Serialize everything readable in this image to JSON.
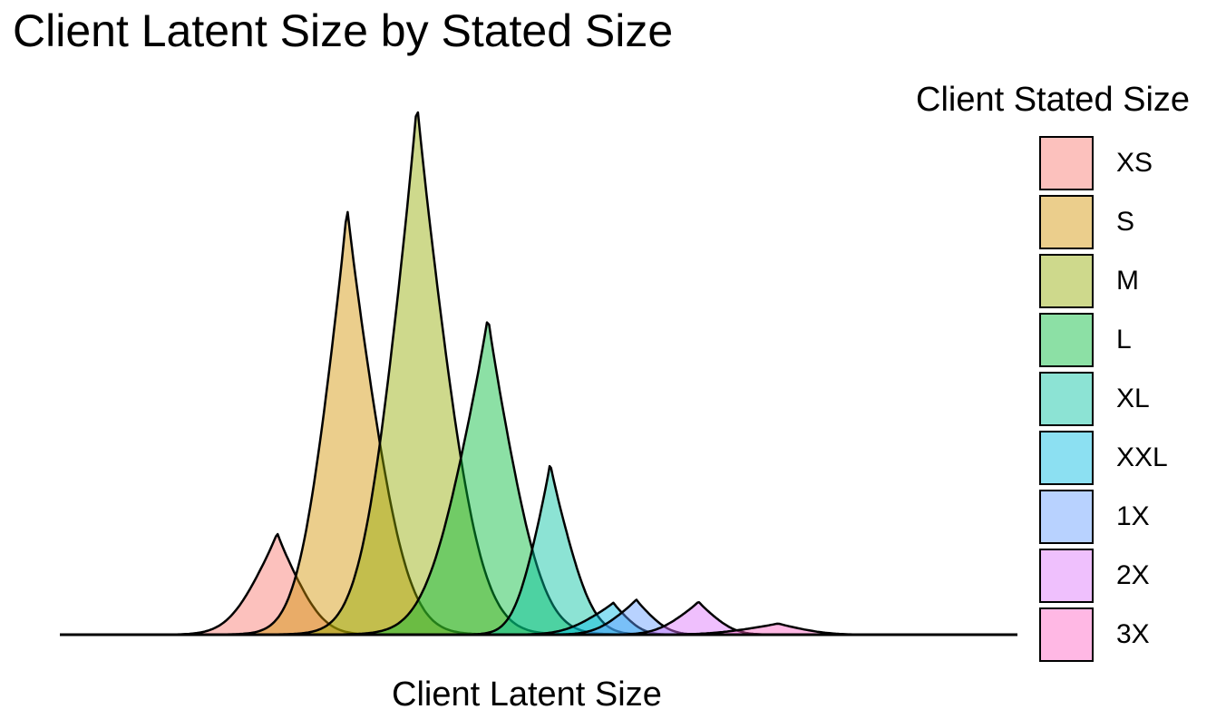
{
  "title": "Client Latent Size by Stated Size",
  "chart_data": {
    "type": "area",
    "title": "Client Latent Size by Stated Size",
    "xlabel": "Client Latent Size",
    "ylabel": "",
    "x_tick_labels": false,
    "y_tick_labels": false,
    "grid": false,
    "legend": {
      "title": "Client Stated Size",
      "position": "right"
    },
    "series": [
      {
        "name": "XS",
        "color": "#F8766D",
        "peak_x": 0.227,
        "peak_height": 0.191,
        "spread": 0.03,
        "right_spread": 0.028
      },
      {
        "name": "S",
        "color": "#D39200",
        "peak_x": 0.3,
        "peak_height": 0.803,
        "spread": 0.03,
        "right_spread": 0.036
      },
      {
        "name": "M",
        "color": "#93AA00",
        "peak_x": 0.373,
        "peak_height": 1.0,
        "spread": 0.034,
        "right_spread": 0.038
      },
      {
        "name": "L",
        "color": "#00BA38",
        "peak_x": 0.447,
        "peak_height": 0.598,
        "spread": 0.038,
        "right_spread": 0.034
      },
      {
        "name": "XL",
        "color": "#00C19F",
        "peak_x": 0.512,
        "peak_height": 0.322,
        "spread": 0.022,
        "right_spread": 0.026
      },
      {
        "name": "XXL",
        "color": "#00B9E3",
        "peak_x": 0.578,
        "peak_height": 0.06,
        "spread": 0.03,
        "right_spread": 0.018
      },
      {
        "name": "1X",
        "color": "#619CFF",
        "peak_x": 0.602,
        "peak_height": 0.066,
        "spread": 0.025,
        "right_spread": 0.02
      },
      {
        "name": "2X",
        "color": "#DB72FB",
        "peak_x": 0.667,
        "peak_height": 0.062,
        "spread": 0.026,
        "right_spread": 0.022
      },
      {
        "name": "3X",
        "color": "#FF61C3",
        "peak_x": 0.75,
        "peak_height": 0.021,
        "spread": 0.04,
        "right_spread": 0.03
      }
    ]
  }
}
